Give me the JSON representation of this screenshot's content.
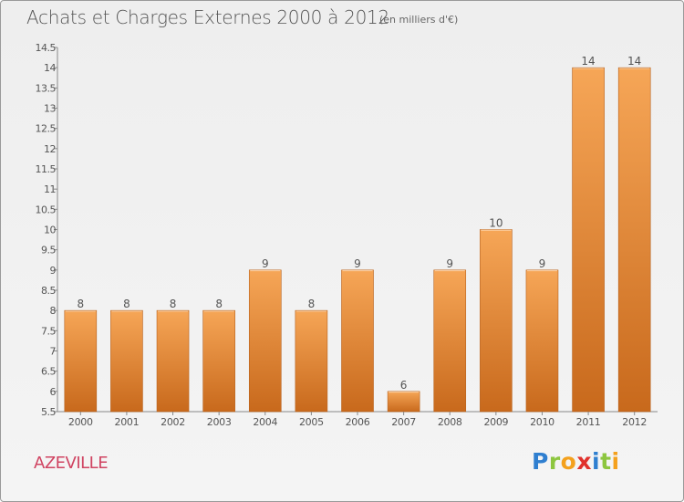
{
  "chart_title": "Achats et Charges Externes 2000 à 2012",
  "chart_subtitle": "(en milliers d'€)",
  "town": "AZEVILLE",
  "logo": {
    "letters": [
      "P",
      "r",
      "o",
      "x",
      "i",
      "t",
      "i"
    ],
    "colors": [
      "#2f7fd0",
      "#8dc63f",
      "#f4a11d",
      "#e0312c",
      "#2f7fd0",
      "#8dc63f",
      "#f4a11d"
    ]
  },
  "colors": {
    "bar_top": "#f6a657",
    "bar_bottom": "#c8691c",
    "bar_edge": "#b8621d",
    "town": "#d04462",
    "text": "#555555"
  },
  "chart_data": {
    "type": "bar",
    "title": "Achats et Charges Externes 2000 à 2012",
    "subtitle": "(en milliers d'€)",
    "xlabel": "",
    "ylabel": "",
    "categories": [
      "2000",
      "2001",
      "2002",
      "2003",
      "2004",
      "2005",
      "2006",
      "2007",
      "2008",
      "2009",
      "2010",
      "2011",
      "2012"
    ],
    "values": [
      8,
      8,
      8,
      8,
      9,
      8,
      9,
      6,
      9,
      10,
      9,
      14,
      14
    ],
    "data_labels": [
      "8",
      "8",
      "8",
      "8",
      "9",
      "8",
      "9",
      "6",
      "9",
      "10",
      "9",
      "14",
      "14"
    ],
    "ylim": [
      5.5,
      14.5
    ],
    "yticks": [
      "5.5",
      "6",
      "6.5",
      "7",
      "7.5",
      "8",
      "8.5",
      "9",
      "9.5",
      "10",
      "10.5",
      "11",
      "11.5",
      "12",
      "12.5",
      "13",
      "13.5",
      "14",
      "14.5"
    ],
    "grid": false,
    "legend": "none"
  }
}
